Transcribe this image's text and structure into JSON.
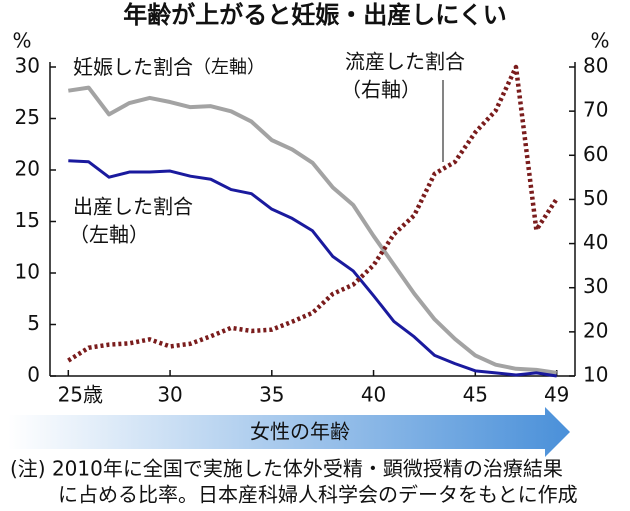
{
  "chart_data": {
    "type": "line",
    "title": "年齢が上がると妊娠・出産しにくい",
    "y_unit": "%",
    "y2_unit": "%",
    "xlabel": "女性の年齢",
    "x": [
      25,
      26,
      27,
      28,
      29,
      30,
      31,
      32,
      33,
      34,
      35,
      36,
      37,
      38,
      39,
      40,
      41,
      42,
      43,
      44,
      45,
      46,
      47,
      48,
      49
    ],
    "xlim": [
      24.1,
      49.9
    ],
    "xticks": [
      {
        "value": 25,
        "label": "25歳"
      },
      30,
      35,
      40,
      45,
      49
    ],
    "ylim": [
      0,
      30
    ],
    "yticks": [
      0,
      5,
      10,
      15,
      20,
      25,
      30
    ],
    "y2lim": [
      10,
      80
    ],
    "y2ticks": [
      10,
      20,
      30,
      40,
      50,
      60,
      70,
      80
    ],
    "grid": false,
    "series": [
      {
        "name": "妊娠した割合",
        "axis_note": "（左軸）",
        "color": "#a3a3a3",
        "values": [
          27.7,
          28.0,
          25.4,
          26.5,
          27.0,
          26.6,
          26.1,
          26.2,
          25.7,
          24.7,
          22.9,
          22.0,
          20.7,
          18.3,
          16.6,
          13.6,
          10.8,
          8.0,
          5.5,
          3.6,
          2.0,
          1.1,
          0.7,
          0.6,
          0.3
        ]
      },
      {
        "name": "出産した割合",
        "axis_note": "（左軸）",
        "color": "#1a1a9e",
        "values": [
          20.9,
          20.8,
          19.3,
          19.8,
          19.8,
          19.9,
          19.4,
          19.1,
          18.1,
          17.7,
          16.2,
          15.3,
          14.1,
          11.6,
          10.2,
          7.8,
          5.3,
          3.8,
          2.0,
          1.2,
          0.5,
          0.3,
          0.1,
          0.3,
          0.0
        ]
      },
      {
        "name": "流産した割合",
        "axis_note": "（右軸）",
        "color": "#7a1c1c",
        "axis": "y2",
        "values": [
          13.5,
          16.4,
          17.1,
          17.4,
          18.3,
          16.7,
          17.3,
          19.0,
          20.9,
          20.2,
          20.5,
          22.3,
          24.3,
          28.6,
          30.7,
          35.1,
          42.1,
          46.4,
          55.8,
          58.5,
          65.2,
          70.1,
          80.0,
          43.1,
          50.1
        ]
      }
    ],
    "notes": [
      "(注) 2010年に全国で実施した体外受精・顕微授精の治療結果",
      "に占める比率。日本産科婦人科学会のデータをもとに作成"
    ]
  }
}
